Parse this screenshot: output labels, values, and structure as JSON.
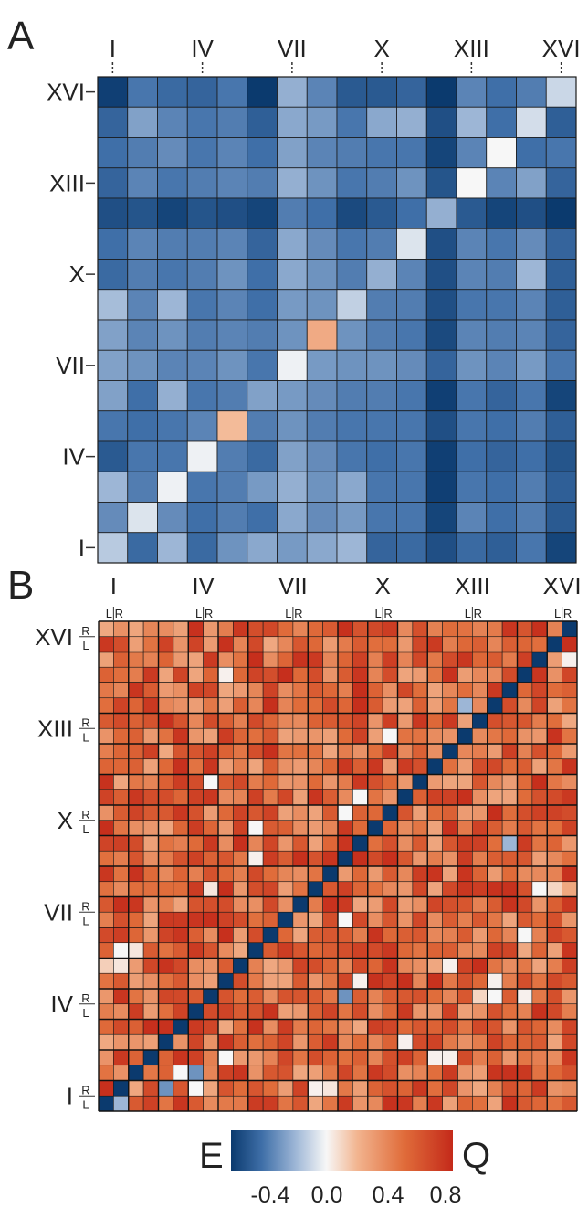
{
  "chart_data": [
    {
      "panel": "A",
      "type": "heatmap",
      "tick_labels": [
        "I",
        "IV",
        "VII",
        "X",
        "XIII",
        "XVI"
      ],
      "grid_size": 16,
      "colormap": "E-Q diverging (blue-white-red)",
      "values_top_to_bottom": [
        [
          -0.58,
          -0.38,
          -0.42,
          -0.44,
          -0.38,
          -0.62,
          -0.22,
          -0.34,
          -0.48,
          -0.48,
          -0.44,
          -0.66,
          -0.34,
          -0.4,
          -0.36,
          -0.1
        ],
        [
          -0.44,
          -0.26,
          -0.34,
          -0.38,
          -0.36,
          -0.46,
          -0.24,
          -0.28,
          -0.38,
          -0.24,
          -0.22,
          -0.52,
          -0.2,
          -0.4,
          -0.08,
          -0.46
        ],
        [
          -0.4,
          -0.36,
          -0.32,
          -0.38,
          -0.34,
          -0.4,
          -0.26,
          -0.34,
          -0.36,
          -0.38,
          -0.38,
          -0.56,
          -0.34,
          0.0,
          -0.4,
          -0.38
        ],
        [
          -0.44,
          -0.34,
          -0.38,
          -0.36,
          -0.34,
          -0.36,
          -0.22,
          -0.3,
          -0.38,
          -0.36,
          -0.3,
          -0.5,
          0.0,
          -0.34,
          -0.26,
          -0.44
        ],
        [
          -0.52,
          -0.5,
          -0.56,
          -0.5,
          -0.52,
          -0.56,
          -0.36,
          -0.4,
          -0.54,
          -0.48,
          -0.4,
          -0.22,
          -0.48,
          -0.56,
          -0.52,
          -0.64
        ],
        [
          -0.4,
          -0.34,
          -0.36,
          -0.36,
          -0.34,
          -0.44,
          -0.24,
          -0.32,
          -0.38,
          -0.36,
          -0.06,
          -0.52,
          -0.34,
          -0.38,
          -0.32,
          -0.44
        ],
        [
          -0.42,
          -0.36,
          -0.38,
          -0.36,
          -0.3,
          -0.4,
          -0.24,
          -0.3,
          -0.36,
          -0.22,
          -0.34,
          -0.52,
          -0.34,
          -0.36,
          -0.2,
          -0.46
        ],
        [
          -0.18,
          -0.34,
          -0.2,
          -0.38,
          -0.34,
          -0.4,
          -0.28,
          -0.3,
          -0.12,
          -0.36,
          -0.36,
          -0.52,
          -0.38,
          -0.38,
          -0.34,
          -0.46
        ],
        [
          -0.26,
          -0.34,
          -0.3,
          -0.36,
          -0.34,
          -0.36,
          -0.3,
          0.24,
          -0.3,
          -0.36,
          -0.38,
          -0.54,
          -0.34,
          -0.36,
          -0.34,
          -0.44
        ],
        [
          -0.26,
          -0.3,
          -0.34,
          -0.34,
          -0.3,
          -0.38,
          -0.02,
          -0.28,
          -0.3,
          -0.3,
          -0.32,
          -0.44,
          -0.3,
          -0.34,
          -0.28,
          -0.38
        ],
        [
          -0.26,
          -0.4,
          -0.22,
          -0.38,
          -0.36,
          -0.26,
          -0.28,
          -0.32,
          -0.36,
          -0.36,
          -0.38,
          -0.58,
          -0.38,
          -0.44,
          -0.38,
          -0.56
        ],
        [
          -0.38,
          -0.4,
          -0.38,
          -0.34,
          0.18,
          -0.36,
          -0.3,
          -0.36,
          -0.38,
          -0.38,
          -0.38,
          -0.52,
          -0.38,
          -0.4,
          -0.36,
          -0.46
        ],
        [
          -0.48,
          -0.38,
          -0.38,
          -0.02,
          -0.36,
          -0.42,
          -0.26,
          -0.32,
          -0.38,
          -0.4,
          -0.38,
          -0.58,
          -0.4,
          -0.44,
          -0.4,
          -0.5
        ],
        [
          -0.2,
          -0.36,
          -0.02,
          -0.38,
          -0.36,
          -0.28,
          -0.22,
          -0.3,
          -0.24,
          -0.38,
          -0.38,
          -0.58,
          -0.38,
          -0.4,
          -0.36,
          -0.46
        ],
        [
          -0.32,
          -0.06,
          -0.32,
          -0.4,
          -0.36,
          -0.4,
          -0.24,
          -0.32,
          -0.28,
          -0.38,
          -0.38,
          -0.56,
          -0.34,
          -0.4,
          -0.36,
          -0.48
        ],
        [
          -0.14,
          -0.42,
          -0.2,
          -0.42,
          -0.3,
          -0.24,
          -0.28,
          -0.24,
          -0.2,
          -0.44,
          -0.42,
          -0.52,
          -0.42,
          -0.46,
          -0.38,
          -0.56
        ]
      ]
    },
    {
      "panel": "B",
      "type": "heatmap",
      "tick_labels": [
        "I",
        "IV",
        "VII",
        "X",
        "XIII",
        "XVI"
      ],
      "arm_labels": {
        "left": "L",
        "right": "R"
      },
      "grid_size": 32,
      "colormap": "E-Q diverging (blue-white-red)",
      "diagonal_value": -0.6,
      "background_range": [
        0.25,
        0.78
      ],
      "light_cells": [
        {
          "row": 31,
          "col": 0,
          "v": 0.0
        },
        {
          "row": 31,
          "col": 1,
          "v": -0.2
        },
        {
          "row": 30,
          "col": 1,
          "v": 0.05
        },
        {
          "row": 2,
          "col": 31,
          "v": 0.02
        },
        {
          "row": 3,
          "col": 8,
          "v": 0.02
        },
        {
          "row": 5,
          "col": 24,
          "v": -0.2
        },
        {
          "row": 7,
          "col": 19,
          "v": 0.0
        },
        {
          "row": 10,
          "col": 7,
          "v": 0.0
        },
        {
          "row": 11,
          "col": 17,
          "v": 0.0
        },
        {
          "row": 12,
          "col": 16,
          "v": 0.0
        },
        {
          "row": 13,
          "col": 10,
          "v": 0.0
        },
        {
          "row": 14,
          "col": 27,
          "v": -0.2
        },
        {
          "row": 15,
          "col": 10,
          "v": 0.02
        },
        {
          "row": 17,
          "col": 7,
          "v": 0.05
        },
        {
          "row": 17,
          "col": 29,
          "v": 0.0
        },
        {
          "row": 17,
          "col": 30,
          "v": 0.1
        },
        {
          "row": 19,
          "col": 16,
          "v": 0.0
        },
        {
          "row": 20,
          "col": 28,
          "v": 0.0
        },
        {
          "row": 21,
          "col": 1,
          "v": 0.0
        },
        {
          "row": 21,
          "col": 2,
          "v": 0.05
        },
        {
          "row": 22,
          "col": 0,
          "v": 0.12
        },
        {
          "row": 22,
          "col": 1,
          "v": 0.05
        },
        {
          "row": 22,
          "col": 23,
          "v": 0.02
        },
        {
          "row": 23,
          "col": 17,
          "v": 0.02
        },
        {
          "row": 23,
          "col": 26,
          "v": 0.02
        },
        {
          "row": 24,
          "col": 16,
          "v": -0.3
        },
        {
          "row": 24,
          "col": 26,
          "v": 0.0
        },
        {
          "row": 24,
          "col": 25,
          "v": 0.1
        },
        {
          "row": 24,
          "col": 28,
          "v": 0.02
        },
        {
          "row": 27,
          "col": 20,
          "v": 0.02
        },
        {
          "row": 28,
          "col": 8,
          "v": 0.0
        },
        {
          "row": 28,
          "col": 22,
          "v": 0.02
        },
        {
          "row": 28,
          "col": 23,
          "v": 0.02
        },
        {
          "row": 29,
          "col": 5,
          "v": 0.0
        },
        {
          "row": 29,
          "col": 6,
          "v": -0.3
        },
        {
          "row": 30,
          "col": 4,
          "v": -0.3
        },
        {
          "row": 30,
          "col": 6,
          "v": 0.0
        },
        {
          "row": 30,
          "col": 14,
          "v": 0.02
        },
        {
          "row": 30,
          "col": 15,
          "v": 0.05
        }
      ]
    }
  ],
  "colorbar": {
    "left_label": "E",
    "right_label": "Q",
    "ticks": [
      "-0.4",
      "0.0",
      "0.4",
      "0.8"
    ],
    "range": [
      -0.6,
      0.8
    ],
    "colors": {
      "low": "#0b3a6e",
      "mid": "#f7f7f7",
      "high": "#c42a1a"
    }
  },
  "panel_labels": [
    "A",
    "B"
  ]
}
